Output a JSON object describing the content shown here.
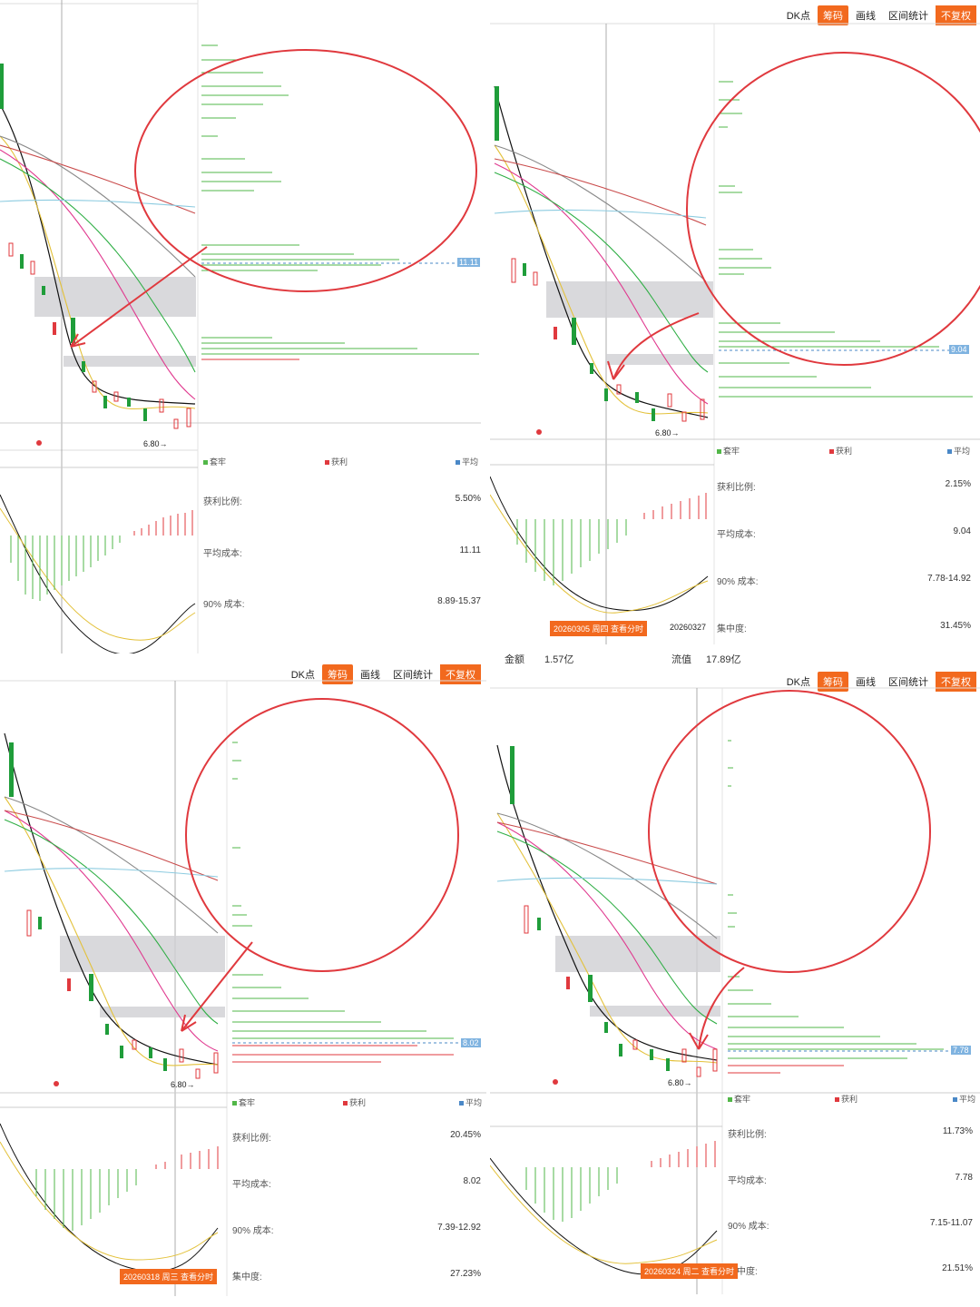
{
  "toolbar": {
    "dk_label": "DK点",
    "chips_label": "筹码",
    "draw_label": "画线",
    "range_label": "区间统计",
    "adjust_label": "不复权"
  },
  "legend": {
    "trapped": "套牢",
    "profit": "获利",
    "avg": "平均"
  },
  "stat_labels": {
    "profit_ratio": "获利比例:",
    "avg_cost": "平均成本:",
    "cost90": "90% 成本:",
    "concentration": "集中度:"
  },
  "low_label": "6.80→",
  "strip": {
    "amount_label": "金额",
    "amount_value": "1.57亿",
    "float_label": "流值",
    "float_value": "17.89亿"
  },
  "colors": {
    "accent": "#f2691e",
    "up": "#e0393e",
    "down": "#1f9d3a",
    "chips_green": "#52b748",
    "circle": "#e0393e"
  },
  "panels": [
    {
      "price_tag": "11.11",
      "profit_ratio": "5.50%",
      "avg_cost": "11.11",
      "cost90": "8.89-15.37",
      "concentration": "",
      "date": ""
    },
    {
      "price_tag": "9.04",
      "profit_ratio": "2.15%",
      "avg_cost": "9.04",
      "cost90": "7.78-14.92",
      "concentration": "31.45%",
      "date": "20260305 周四 查看分时",
      "date2": "20260327"
    },
    {
      "price_tag": "8.02",
      "profit_ratio": "20.45%",
      "avg_cost": "8.02",
      "cost90": "7.39-12.92",
      "concentration": "27.23%",
      "date": "20260318 周三 查看分时"
    },
    {
      "price_tag": "7.78",
      "profit_ratio": "11.73%",
      "avg_cost": "7.78",
      "cost90": "7.15-11.07",
      "concentration": "21.51%",
      "date": "20260324 周二 查看分时"
    }
  ]
}
